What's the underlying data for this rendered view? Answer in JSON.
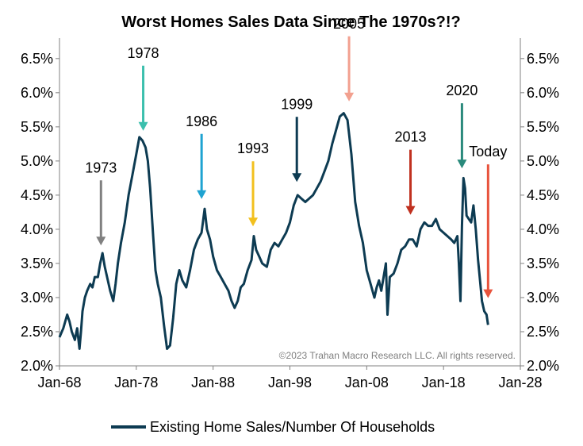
{
  "chart_data": {
    "type": "line",
    "title": "Worst Homes Sales Data Since The 1970s?!?",
    "xlabel": "",
    "ylabel": "",
    "x_ticks": [
      "Jan-68",
      "Jan-78",
      "Jan-88",
      "Jan-98",
      "Jan-08",
      "Jan-18",
      "Jan-28"
    ],
    "y_ticks": [
      "2.0%",
      "2.5%",
      "3.0%",
      "3.5%",
      "4.0%",
      "4.5%",
      "5.0%",
      "5.5%",
      "6.0%",
      "6.5%"
    ],
    "xlim": [
      1968,
      2028
    ],
    "ylim": [
      2.0,
      6.8
    ],
    "copyright": "©2023 Trahan Macro Research LLC. All rights reserved.",
    "series": [
      {
        "name": "Existing Home Sales/Number Of Households",
        "color": "#0d3b52",
        "x": [
          1968.0,
          1968.5,
          1969.0,
          1969.3,
          1969.6,
          1970.0,
          1970.3,
          1970.6,
          1970.8,
          1971.0,
          1971.3,
          1971.6,
          1972.0,
          1972.3,
          1972.6,
          1973.0,
          1973.3,
          1973.6,
          1973.9,
          1974.2,
          1974.6,
          1975.0,
          1975.3,
          1975.6,
          1976.0,
          1976.5,
          1977.0,
          1977.5,
          1978.0,
          1978.4,
          1978.8,
          1979.2,
          1979.5,
          1979.8,
          1980.2,
          1980.5,
          1980.8,
          1981.2,
          1981.6,
          1982.0,
          1982.4,
          1982.8,
          1983.2,
          1983.6,
          1984.0,
          1984.5,
          1985.0,
          1985.5,
          1986.0,
          1986.5,
          1986.9,
          1987.2,
          1987.6,
          1988.0,
          1988.5,
          1989.0,
          1989.5,
          1990.0,
          1990.4,
          1990.8,
          1991.2,
          1991.6,
          1992.0,
          1992.5,
          1993.0,
          1993.3,
          1993.6,
          1994.0,
          1994.4,
          1995.0,
          1995.5,
          1996.0,
          1996.5,
          1997.0,
          1997.5,
          1998.0,
          1998.5,
          1999.0,
          1999.5,
          2000.0,
          2000.5,
          2001.0,
          2001.5,
          2002.0,
          2002.5,
          2003.0,
          2003.5,
          2004.0,
          2004.5,
          2005.0,
          2005.5,
          2006.0,
          2006.5,
          2007.0,
          2007.5,
          2008.0,
          2008.5,
          2009.0,
          2009.3,
          2009.6,
          2009.9,
          2010.2,
          2010.5,
          2010.7,
          2011.0,
          2011.5,
          2012.0,
          2012.5,
          2013.0,
          2013.5,
          2014.0,
          2014.5,
          2015.0,
          2015.5,
          2016.0,
          2016.5,
          2017.0,
          2017.5,
          2018.0,
          2018.5,
          2019.0,
          2019.4,
          2019.8,
          2020.0,
          2020.2,
          2020.4,
          2020.6,
          2020.8,
          2021.0,
          2021.3,
          2021.6,
          2021.9,
          2022.2,
          2022.5,
          2022.8,
          2023.0,
          2023.3,
          2023.6,
          2023.8
        ],
        "values": [
          2.42,
          2.55,
          2.75,
          2.65,
          2.5,
          2.38,
          2.55,
          2.25,
          2.5,
          2.8,
          3.0,
          3.1,
          3.2,
          3.15,
          3.3,
          3.3,
          3.5,
          3.65,
          3.45,
          3.3,
          3.1,
          2.95,
          3.2,
          3.5,
          3.8,
          4.1,
          4.5,
          4.8,
          5.1,
          5.35,
          5.3,
          5.2,
          5.0,
          4.6,
          3.9,
          3.4,
          3.2,
          3.0,
          2.6,
          2.25,
          2.3,
          2.7,
          3.2,
          3.4,
          3.25,
          3.15,
          3.4,
          3.7,
          3.85,
          3.95,
          4.3,
          4.0,
          3.85,
          3.6,
          3.4,
          3.3,
          3.2,
          3.1,
          2.95,
          2.85,
          2.95,
          3.15,
          3.2,
          3.4,
          3.55,
          3.9,
          3.7,
          3.6,
          3.5,
          3.45,
          3.7,
          3.8,
          3.75,
          3.85,
          3.95,
          4.1,
          4.35,
          4.5,
          4.45,
          4.4,
          4.45,
          4.5,
          4.6,
          4.7,
          4.85,
          5.0,
          5.25,
          5.45,
          5.65,
          5.7,
          5.6,
          5.1,
          4.4,
          4.05,
          3.8,
          3.4,
          3.2,
          3.0,
          3.15,
          3.25,
          3.1,
          3.3,
          3.5,
          2.75,
          3.3,
          3.35,
          3.5,
          3.7,
          3.75,
          3.85,
          3.85,
          3.75,
          4.0,
          4.1,
          4.05,
          4.05,
          4.15,
          4.0,
          3.95,
          3.9,
          3.85,
          3.8,
          3.9,
          3.5,
          2.95,
          4.05,
          4.75,
          4.6,
          4.2,
          4.15,
          4.1,
          4.35,
          4.0,
          3.55,
          3.2,
          2.95,
          2.8,
          2.75,
          2.6
        ]
      }
    ],
    "annotations": [
      {
        "label": "1973",
        "color": "#808080",
        "x": 1973.4,
        "y": 3.67
      },
      {
        "label": "1978",
        "color": "#3bbfad",
        "x": 1978.9,
        "y": 5.35
      },
      {
        "label": "1986",
        "color": "#1fa3d1",
        "x": 1986.5,
        "y": 4.35
      },
      {
        "label": "1993",
        "color": "#f2c01e",
        "x": 1993.2,
        "y": 3.95
      },
      {
        "label": "1999",
        "color": "#0d3b52",
        "x": 1998.9,
        "y": 4.6
      },
      {
        "label": "2005",
        "color": "#f2a08f",
        "x": 2005.7,
        "y": 5.78
      },
      {
        "label": "2013",
        "color": "#c0301f",
        "x": 2013.7,
        "y": 4.12
      },
      {
        "label": "2020",
        "color": "#2a8a7c",
        "x": 2020.4,
        "y": 4.8
      },
      {
        "label": "Today",
        "color": "#e8533c",
        "x": 2023.8,
        "y": 2.9
      }
    ]
  }
}
